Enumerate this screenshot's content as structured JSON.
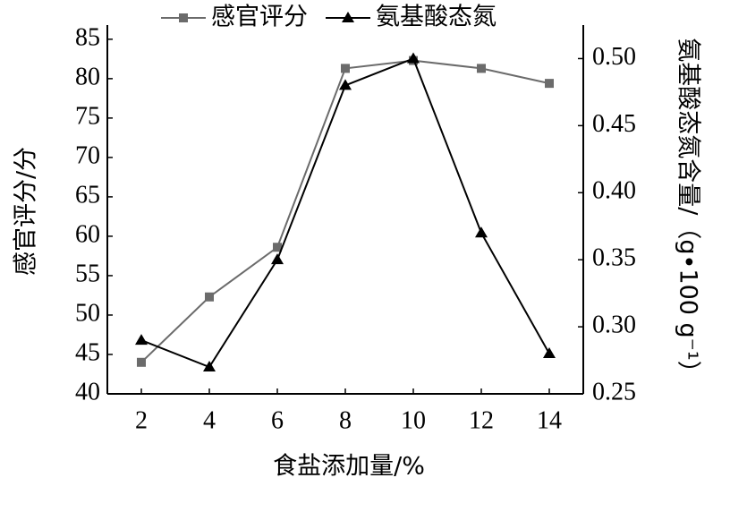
{
  "chart_data": {
    "type": "line",
    "x": [
      2,
      4,
      6,
      8,
      10,
      12,
      14
    ],
    "xlim": [
      1,
      15
    ],
    "xticks": [
      2,
      4,
      6,
      8,
      10,
      12,
      14
    ],
    "xlabel": "食盐添加量/%",
    "ylabel": "感官评分/分",
    "y2label": "氨基酸态氮含量/（g•100 g⁻¹）",
    "ylim": [
      40,
      86.8
    ],
    "yticks": [
      40,
      45,
      50,
      55,
      60,
      65,
      70,
      75,
      80,
      85
    ],
    "y2lim": [
      0.25,
      0.525
    ],
    "y2ticks": [
      {
        "value": 0.25,
        "label": "0.25"
      },
      {
        "value": 0.3,
        "label": "0.30"
      },
      {
        "value": 0.35,
        "label": "0.35"
      },
      {
        "value": 0.4,
        "label": "0.40"
      },
      {
        "value": 0.45,
        "label": "0.45"
      },
      {
        "value": 0.5,
        "label": "0.50"
      }
    ],
    "series": [
      {
        "name": "感官评分",
        "color": "#6b6b6b",
        "marker": "square",
        "values": [
          44,
          52.3,
          58.6,
          81.3,
          82.3,
          81.3,
          79.4
        ]
      },
      {
        "name": "氨基酸态氮",
        "color": "#000000",
        "marker": "triangle",
        "axis": "y2",
        "values": [
          0.29,
          0.27,
          0.35,
          0.48,
          0.5,
          0.37,
          0.28
        ]
      }
    ]
  }
}
